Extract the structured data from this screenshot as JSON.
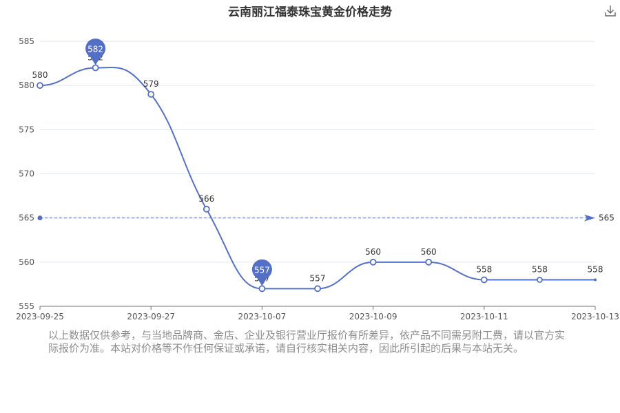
{
  "page": {
    "title": "云南丽江福泰珠宝黄金价格走势",
    "disclaimer": "以上数据仅供参考，与当地品牌商、金店、企业及银行营业厅报价有所差异，依产品不同需另附工费，请以官方实际报价为准。本站对价格等不作任何保证或承诺，请自行核实相关内容，因此所引起的后果与本站无关。",
    "download_icon": "download-icon"
  },
  "chart_data": {
    "type": "line",
    "title": "云南丽江福泰珠宝黄金价格走势",
    "x": [
      "2023-09-25",
      "2023-09-26",
      "2023-09-27",
      "2023-09-28",
      "2023-10-07",
      "2023-10-08",
      "2023-10-09",
      "2023-10-10",
      "2023-10-11",
      "2023-10-12",
      "2023-10-13"
    ],
    "x_tick_labels": [
      "2023-09-25",
      "2023-09-27",
      "2023-10-07",
      "2023-10-09",
      "2023-10-11",
      "2023-10-13"
    ],
    "values": [
      580,
      582,
      579,
      566,
      557,
      557,
      560,
      560,
      558,
      558,
      558
    ],
    "ylim": [
      555,
      585
    ],
    "yticks": [
      555,
      560,
      565,
      570,
      575,
      580,
      585
    ],
    "grid": true,
    "smooth": true,
    "line_color": "#5470c6",
    "mark_points": [
      {
        "type": "max",
        "value": 582,
        "index": 1
      },
      {
        "type": "min",
        "value": 557,
        "index": 4
      }
    ],
    "mark_line": {
      "type": "average",
      "value": 565
    }
  }
}
